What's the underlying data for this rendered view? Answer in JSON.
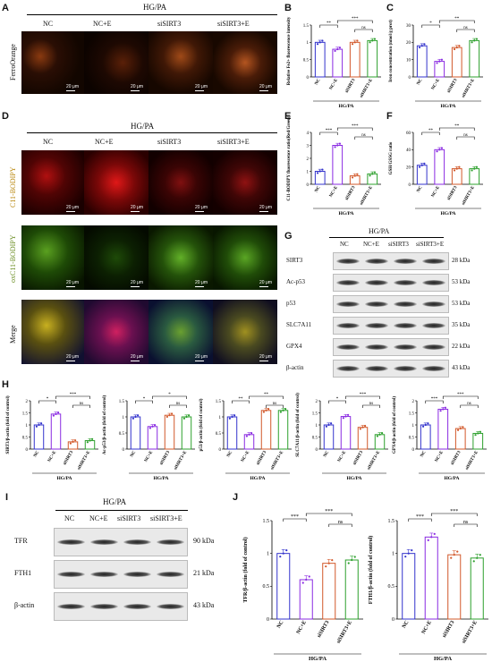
{
  "figure": {
    "panel_letters": [
      "A",
      "B",
      "C",
      "D",
      "E",
      "F",
      "G",
      "H",
      "I",
      "J"
    ],
    "hg_pa": "HG/PA",
    "groups": [
      "NC",
      "NC+E",
      "siSIRT3",
      "siSIRT3+E"
    ],
    "scale_bar": "20 μm",
    "stains": {
      "ferro": "FerroOrange",
      "c11": "C11-BODIPY",
      "oxc11": "oxC11-BODIPY",
      "merge": "Merge"
    },
    "colors": {
      "NC": "#3333cc",
      "NC+E": "#8a2be2",
      "siSIRT3": "#d2582a",
      "siSIRT3+E": "#2ca02c"
    },
    "western_G": {
      "rows": [
        {
          "name": "SIRT3",
          "kda": "28 kDa"
        },
        {
          "name": "Ac-p53",
          "kda": "53 kDa"
        },
        {
          "name": "p53",
          "kda": "53 kDa"
        },
        {
          "name": "SLC7A11",
          "kda": "35 kDa"
        },
        {
          "name": "GPX4",
          "kda": "22 kDa"
        },
        {
          "name": "β-actin",
          "kda": "43 kDa"
        }
      ]
    },
    "western_I": {
      "rows": [
        {
          "name": "TFR",
          "kda": "90 kDa"
        },
        {
          "name": "FTH1",
          "kda": "21 kDa"
        },
        {
          "name": "β-actin",
          "kda": "43 kDa"
        }
      ]
    }
  },
  "chart_data": [
    {
      "panel": "B",
      "type": "bar",
      "categories": [
        "NC",
        "NC+E",
        "siSIRT3",
        "siSIRT3+E"
      ],
      "values": [
        1.0,
        0.8,
        1.0,
        1.05
      ],
      "ylabel": "Relative Fe2+ fluorescence intensity",
      "xlabel": "HG/PA",
      "ylim": [
        0,
        1.5
      ],
      "yticks": [
        0.0,
        0.5,
        1.0,
        1.5
      ],
      "sig": [
        {
          "a": 0,
          "b": 1,
          "t": "**"
        },
        {
          "a": 1,
          "b": 3,
          "t": "***"
        },
        {
          "a": 2,
          "b": 3,
          "t": "ns"
        }
      ]
    },
    {
      "panel": "C",
      "type": "bar",
      "categories": [
        "NC",
        "NC+E",
        "siSIRT3",
        "siSIRT3+E"
      ],
      "values": [
        18,
        9,
        17,
        21
      ],
      "ylabel": "Iron concentration (nmol/g prot)",
      "xlabel": "HG/PA",
      "ylim": [
        0,
        30
      ],
      "yticks": [
        0,
        10,
        20,
        30
      ],
      "sig": [
        {
          "a": 0,
          "b": 1,
          "t": "*"
        },
        {
          "a": 1,
          "b": 3,
          "t": "**"
        },
        {
          "a": 2,
          "b": 3,
          "t": "ns"
        }
      ]
    },
    {
      "panel": "E",
      "type": "bar",
      "categories": [
        "NC",
        "NC+E",
        "siSIRT3",
        "siSIRT3+E"
      ],
      "values": [
        1.0,
        3.0,
        0.65,
        0.8
      ],
      "ylabel": "C11-BODIPY fluorescence ratio(Red/Green)",
      "xlabel": "HG/PA",
      "ylim": [
        0,
        4
      ],
      "yticks": [
        0,
        1,
        2,
        3,
        4
      ],
      "sig": [
        {
          "a": 0,
          "b": 1,
          "t": "***"
        },
        {
          "a": 1,
          "b": 3,
          "t": "***"
        },
        {
          "a": 2,
          "b": 3,
          "t": "ns"
        }
      ]
    },
    {
      "panel": "F",
      "type": "bar",
      "categories": [
        "NC",
        "NC+E",
        "siSIRT3",
        "siSIRT3+E"
      ],
      "values": [
        22,
        40,
        18,
        18
      ],
      "ylabel": "GSH/GSSG ratio",
      "xlabel": "HG/PA",
      "ylim": [
        0,
        60
      ],
      "yticks": [
        0,
        20,
        40,
        60
      ],
      "sig": [
        {
          "a": 0,
          "b": 1,
          "t": "**"
        },
        {
          "a": 1,
          "b": 3,
          "t": "**"
        },
        {
          "a": 2,
          "b": 3,
          "t": "ns"
        }
      ]
    },
    {
      "panel": "H1",
      "type": "bar",
      "categories": [
        "NC",
        "NC+E",
        "siSIRT3",
        "siSIRT3+E"
      ],
      "values": [
        1.0,
        1.45,
        0.3,
        0.35
      ],
      "ylabel": "SIRT3/β-actin (fold of control)",
      "xlabel": "HG/PA",
      "ylim": [
        0,
        2.0
      ],
      "yticks": [
        0.0,
        0.5,
        1.0,
        1.5,
        2.0
      ],
      "sig": [
        {
          "a": 0,
          "b": 1,
          "t": "*"
        },
        {
          "a": 1,
          "b": 3,
          "t": "***"
        },
        {
          "a": 2,
          "b": 3,
          "t": "ns"
        }
      ]
    },
    {
      "panel": "H2",
      "type": "bar",
      "categories": [
        "NC",
        "NC+E",
        "siSIRT3",
        "siSIRT3+E"
      ],
      "values": [
        1.0,
        0.7,
        1.05,
        1.0
      ],
      "ylabel": "Ac-p53/β-actin (fold of control)",
      "xlabel": "HG/PA",
      "ylim": [
        0,
        1.5
      ],
      "yticks": [
        0.0,
        0.5,
        1.0,
        1.5
      ],
      "sig": [
        {
          "a": 0,
          "b": 1,
          "t": "*"
        },
        {
          "a": 1,
          "b": 3,
          "t": "*"
        },
        {
          "a": 2,
          "b": 3,
          "t": "ns"
        }
      ]
    },
    {
      "panel": "H3",
      "type": "bar",
      "categories": [
        "NC",
        "NC+E",
        "siSIRT3",
        "siSIRT3+E"
      ],
      "values": [
        1.0,
        0.45,
        1.2,
        1.2
      ],
      "ylabel": "p53/β-actin (fold of control)",
      "xlabel": "HG/PA",
      "ylim": [
        0,
        1.5
      ],
      "yticks": [
        0.0,
        0.5,
        1.0,
        1.5
      ],
      "sig": [
        {
          "a": 0,
          "b": 1,
          "t": "**"
        },
        {
          "a": 1,
          "b": 3,
          "t": "**"
        },
        {
          "a": 2,
          "b": 3,
          "t": "ns"
        }
      ]
    },
    {
      "panel": "H4",
      "type": "bar",
      "categories": [
        "NC",
        "NC+E",
        "siSIRT3",
        "siSIRT3+E"
      ],
      "values": [
        1.0,
        1.35,
        0.9,
        0.6
      ],
      "ylabel": "SLC7A11/β-actin (fold of control)",
      "xlabel": "HG/PA",
      "ylim": [
        0,
        2.0
      ],
      "yticks": [
        0.0,
        0.5,
        1.0,
        1.5,
        2.0
      ],
      "sig": [
        {
          "a": 0,
          "b": 1,
          "t": "*"
        },
        {
          "a": 1,
          "b": 3,
          "t": "***"
        },
        {
          "a": 2,
          "b": 3,
          "t": "ns"
        }
      ]
    },
    {
      "panel": "H5",
      "type": "bar",
      "categories": [
        "NC",
        "NC+E",
        "siSIRT3",
        "siSIRT3+E"
      ],
      "values": [
        1.0,
        1.65,
        0.85,
        0.65
      ],
      "ylabel": "GPX4/β-actin (fold of control)",
      "xlabel": "HG/PA",
      "ylim": [
        0,
        2.0
      ],
      "yticks": [
        0.0,
        0.5,
        1.0,
        1.5,
        2.0
      ],
      "sig": [
        {
          "a": 0,
          "b": 1,
          "t": "***"
        },
        {
          "a": 1,
          "b": 3,
          "t": "***"
        },
        {
          "a": 2,
          "b": 3,
          "t": "ns"
        }
      ]
    },
    {
      "panel": "J1",
      "type": "bar",
      "categories": [
        "NC",
        "NC+E",
        "siSIRT3",
        "siSIRT3+E"
      ],
      "values": [
        1.0,
        0.6,
        0.85,
        0.9
      ],
      "ylabel": "TFR/β-actin (fold of control)",
      "xlabel": "HG/PA",
      "ylim": [
        0,
        1.5
      ],
      "yticks": [
        0.0,
        0.5,
        1.0,
        1.5
      ],
      "sig": [
        {
          "a": 0,
          "b": 1,
          "t": "***"
        },
        {
          "a": 1,
          "b": 3,
          "t": "***"
        },
        {
          "a": 2,
          "b": 3,
          "t": "ns"
        }
      ]
    },
    {
      "panel": "J2",
      "type": "bar",
      "categories": [
        "NC",
        "NC+E",
        "siSIRT3",
        "siSIRT3+E"
      ],
      "values": [
        1.0,
        1.25,
        0.98,
        0.93
      ],
      "ylabel": "FTH1/β-actin (fold of control)",
      "xlabel": "HG/PA",
      "ylim": [
        0,
        1.5
      ],
      "yticks": [
        0.0,
        0.5,
        1.0,
        1.5
      ],
      "sig": [
        {
          "a": 0,
          "b": 1,
          "t": "***"
        },
        {
          "a": 1,
          "b": 3,
          "t": "***"
        },
        {
          "a": 2,
          "b": 3,
          "t": "ns"
        }
      ]
    }
  ]
}
